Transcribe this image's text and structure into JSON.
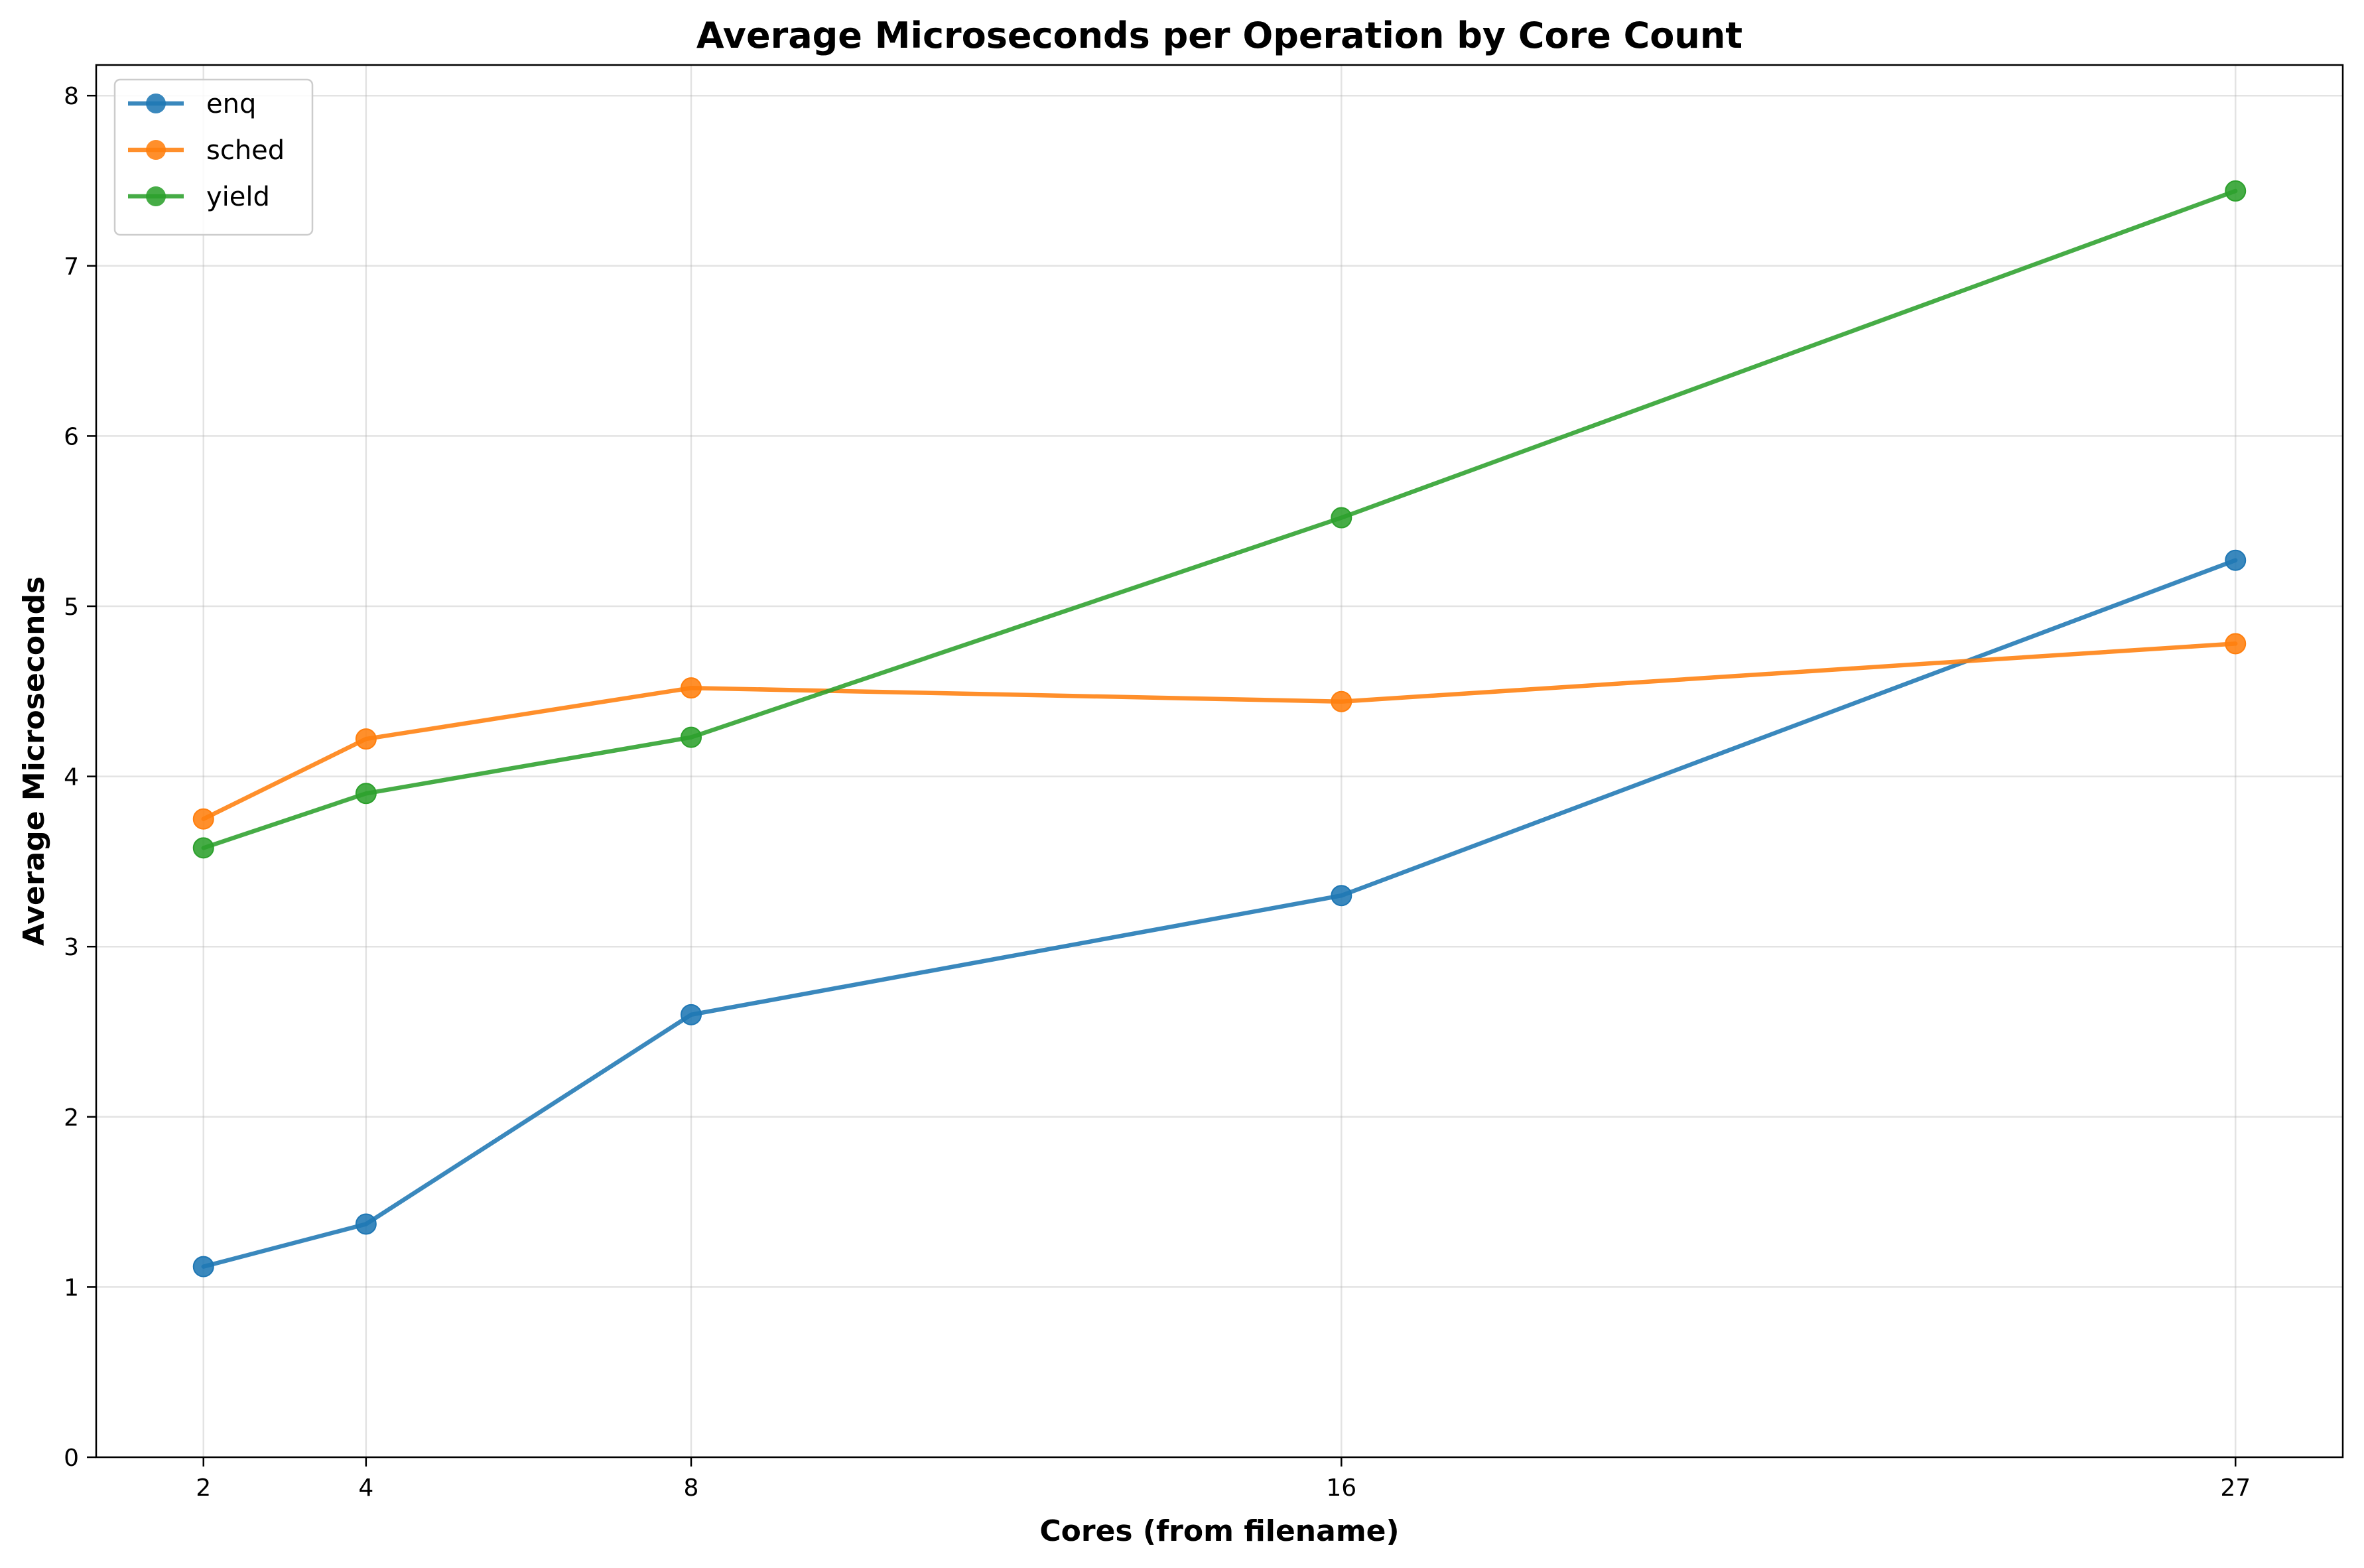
{
  "chart_data": {
    "type": "line",
    "title": "Average Microseconds per Operation by Core Count",
    "xlabel": "Cores (from filename)",
    "ylabel": "Average Microseconds",
    "x": [
      2,
      4,
      8,
      16,
      27
    ],
    "xticks": [
      "2",
      "4",
      "8",
      "16",
      "27"
    ],
    "yticks": [
      "0",
      "1",
      "2",
      "3",
      "4",
      "5",
      "6",
      "7",
      "8"
    ],
    "xlim": [
      0.68,
      28.32
    ],
    "ylim": [
      0,
      8.18
    ],
    "grid": true,
    "legend_position": "top-left",
    "series": [
      {
        "name": "enq",
        "color": "#1f77b4",
        "values": [
          1.12,
          1.37,
          2.6,
          3.3,
          5.27
        ]
      },
      {
        "name": "sched",
        "color": "#ff7f0e",
        "values": [
          3.75,
          4.22,
          4.52,
          4.44,
          4.78
        ]
      },
      {
        "name": "yield",
        "color": "#2ca02c",
        "values": [
          3.58,
          3.9,
          4.23,
          5.52,
          7.44
        ]
      }
    ]
  }
}
